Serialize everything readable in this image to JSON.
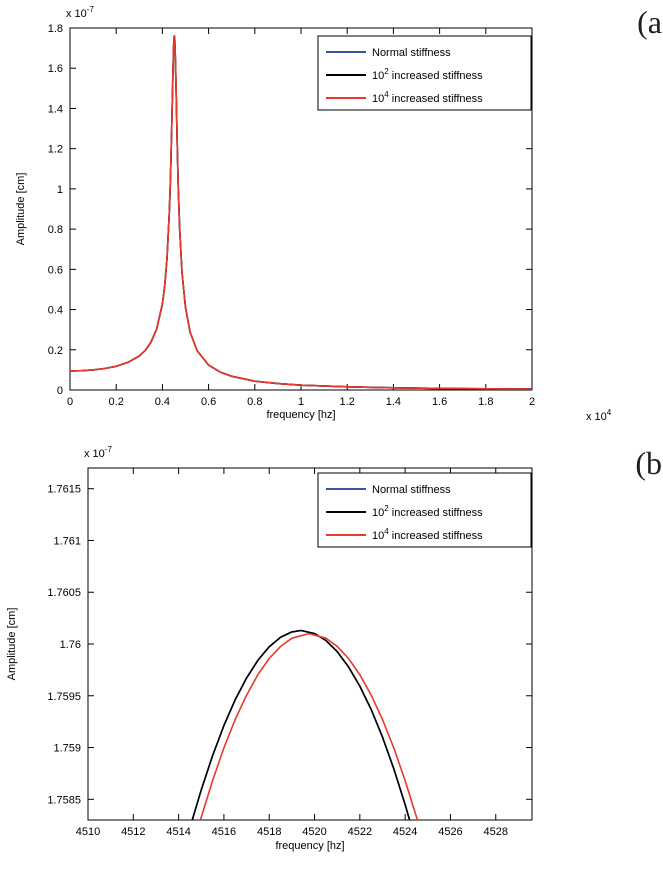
{
  "figure": {
    "background": "#ffffff",
    "axis_color": "#000000"
  },
  "chart_data": [
    {
      "id": "a",
      "type": "line",
      "panel_label": "(a",
      "xlabel": "frequency [hz]",
      "ylabel": "Amplitude [cm]",
      "x_scale_note": {
        "pre": "x 10",
        "sup": "4"
      },
      "y_scale_note": {
        "pre": "x 10",
        "sup": "-7"
      },
      "x_unit": "Hz",
      "y_unit": "1e-7 cm",
      "xlim": [
        0,
        20000
      ],
      "ylim": [
        0,
        1.8
      ],
      "grid": false,
      "legend_position": "top-right",
      "xticks": [
        {
          "v": 0,
          "label": "0"
        },
        {
          "v": 2000,
          "label": "0.2"
        },
        {
          "v": 4000,
          "label": "0.4"
        },
        {
          "v": 6000,
          "label": "0.6"
        },
        {
          "v": 8000,
          "label": "0.8"
        },
        {
          "v": 10000,
          "label": "1"
        },
        {
          "v": 12000,
          "label": "1.2"
        },
        {
          "v": 14000,
          "label": "1.4"
        },
        {
          "v": 16000,
          "label": "1.6"
        },
        {
          "v": 18000,
          "label": "1.8"
        },
        {
          "v": 20000,
          "label": "2"
        }
      ],
      "yticks": [
        {
          "v": 0,
          "label": "0"
        },
        {
          "v": 0.2,
          "label": "0.2"
        },
        {
          "v": 0.4,
          "label": "0.4"
        },
        {
          "v": 0.6,
          "label": "0.6"
        },
        {
          "v": 0.8,
          "label": "0.8"
        },
        {
          "v": 1,
          "label": "1"
        },
        {
          "v": 1.2,
          "label": "1.2"
        },
        {
          "v": 1.4,
          "label": "1.4"
        },
        {
          "v": 1.6,
          "label": "1.6"
        },
        {
          "v": 1.8,
          "label": "1.8"
        }
      ],
      "x": [
        0,
        500,
        1000,
        1500,
        2000,
        2500,
        3000,
        3250,
        3500,
        3750,
        4000,
        4100,
        4200,
        4300,
        4350,
        4400,
        4440,
        4470,
        4490,
        4505,
        4515,
        4520,
        4525,
        4535,
        4550,
        4570,
        4600,
        4640,
        4690,
        4750,
        4850,
        5000,
        5200,
        5500,
        6000,
        6500,
        7000,
        8000,
        9000,
        10000,
        12000,
        14000,
        16000,
        18000,
        20000
      ],
      "y_shared": [
        0.095,
        0.096,
        0.1,
        0.107,
        0.118,
        0.137,
        0.169,
        0.196,
        0.236,
        0.302,
        0.428,
        0.517,
        0.654,
        0.881,
        1.054,
        1.283,
        1.497,
        1.647,
        1.721,
        1.753,
        1.76,
        1.76,
        1.756,
        1.74,
        1.696,
        1.609,
        1.447,
        1.227,
        0.999,
        0.798,
        0.585,
        0.41,
        0.288,
        0.196,
        0.124,
        0.089,
        0.068,
        0.044,
        0.032,
        0.024,
        0.016,
        0.011,
        0.008,
        0.006,
        0.005
      ],
      "series": [
        {
          "id": "normal",
          "color": "#3a53a4",
          "legend": {
            "pre": "Normal stiffness",
            "sup": "",
            "post": ""
          }
        },
        {
          "id": "stiff-1e2",
          "color": "#000000",
          "legend": {
            "pre": "10",
            "sup": "2",
            "post": " increased stiffness"
          }
        },
        {
          "id": "stiff-1e4",
          "color": "#e8392a",
          "legend": {
            "pre": "10",
            "sup": "4",
            "post": " increased stiffness"
          }
        }
      ]
    },
    {
      "id": "b",
      "type": "line",
      "panel_label": "(b",
      "xlabel": "frequency [hz]",
      "ylabel": "Amplitude [cm]",
      "y_scale_note": {
        "pre": "x 10",
        "sup": "-7"
      },
      "x_unit": "Hz",
      "y_unit": "1e-7 cm",
      "xlim": [
        4510,
        4529.6
      ],
      "ylim": [
        1.7583,
        1.7617
      ],
      "grid": false,
      "legend_position": "top-right",
      "xticks": [
        {
          "v": 4510,
          "label": "4510"
        },
        {
          "v": 4512,
          "label": "4512"
        },
        {
          "v": 4514,
          "label": "4514"
        },
        {
          "v": 4516,
          "label": "4516"
        },
        {
          "v": 4518,
          "label": "4518"
        },
        {
          "v": 4520,
          "label": "4520"
        },
        {
          "v": 4522,
          "label": "4522"
        },
        {
          "v": 4524,
          "label": "4524"
        },
        {
          "v": 4526,
          "label": "4526"
        },
        {
          "v": 4528,
          "label": "4528"
        }
      ],
      "yticks": [
        {
          "v": 1.7585,
          "label": "1.7585"
        },
        {
          "v": 1.759,
          "label": "1.759"
        },
        {
          "v": 1.7595,
          "label": "1.7595"
        },
        {
          "v": 1.76,
          "label": "1.76"
        },
        {
          "v": 1.7605,
          "label": "1.7605"
        },
        {
          "v": 1.761,
          "label": "1.761"
        },
        {
          "v": 1.7615,
          "label": "1.7615"
        }
      ],
      "series": [
        {
          "id": "normal",
          "color": "#3a53a4",
          "legend": {
            "pre": "Normal stiffness",
            "sup": "",
            "post": ""
          },
          "x": [
            4514.5,
            4515,
            4515.5,
            4516,
            4516.5,
            4517,
            4517.5,
            4518,
            4518.5,
            4519,
            4519.4,
            4520,
            4520.5,
            4521,
            4521.5,
            4522,
            4522.5,
            4523,
            4523.5,
            4524,
            4524.3
          ],
          "y": [
            1.758224,
            1.758593,
            1.758922,
            1.759212,
            1.759462,
            1.759673,
            1.759843,
            1.759974,
            1.760066,
            1.760117,
            1.76013,
            1.760101,
            1.760034,
            1.759927,
            1.75978,
            1.759593,
            1.759367,
            1.759101,
            1.758795,
            1.75845,
            1.758224
          ]
        },
        {
          "id": "stiff-1e2",
          "color": "#000000",
          "legend": {
            "pre": "10",
            "sup": "2",
            "post": " increased stiffness"
          },
          "x": [
            4514.5,
            4515,
            4515.5,
            4516,
            4516.5,
            4517,
            4517.5,
            4518,
            4518.5,
            4519,
            4519.4,
            4520,
            4520.5,
            4521,
            4521.5,
            4522,
            4522.5,
            4523,
            4523.5,
            4524,
            4524.3
          ],
          "y": [
            1.758224,
            1.758593,
            1.758922,
            1.759212,
            1.759462,
            1.759673,
            1.759843,
            1.759974,
            1.760066,
            1.760117,
            1.76013,
            1.760101,
            1.760034,
            1.759927,
            1.75978,
            1.759593,
            1.759367,
            1.759101,
            1.758795,
            1.75845,
            1.758224
          ]
        },
        {
          "id": "stiff-1e4",
          "color": "#e8392a",
          "legend": {
            "pre": "10",
            "sup": "4",
            "post": " increased stiffness"
          },
          "x": [
            4514.9,
            4515,
            4515.5,
            4516,
            4516.5,
            4517,
            4517.5,
            4518,
            4518.5,
            4519,
            4519.75,
            4520.5,
            4521,
            4521.5,
            4522,
            4522.5,
            4523,
            4523.5,
            4524,
            4524.5,
            4524.6
          ],
          "y": [
            1.758253,
            1.758329,
            1.758682,
            1.758996,
            1.759271,
            1.759506,
            1.759703,
            1.75986,
            1.759977,
            1.760056,
            1.7601,
            1.760056,
            1.759977,
            1.75986,
            1.759703,
            1.759506,
            1.759271,
            1.758996,
            1.758682,
            1.758329,
            1.758253
          ]
        }
      ]
    }
  ]
}
